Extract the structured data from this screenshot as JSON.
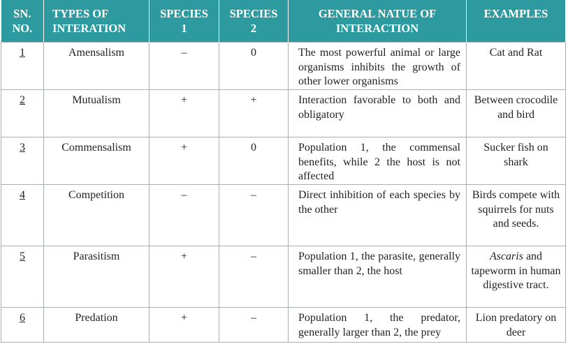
{
  "table": {
    "headers": [
      "SN.\nNO.",
      "TYPES OF\nINTERATION",
      "SPECIES\n1",
      "SPECIES\n2",
      "GENERAL NATUE OF\nINTERACTION",
      "EXAMPLES"
    ],
    "rows": [
      [
        "1",
        "Amensalism",
        "–",
        "0",
        "The most powerful animal or large organisms inhibits the growth of other lower organisms",
        "Cat and Rat"
      ],
      [
        "2",
        "Mutualism",
        "+",
        "+",
        "Interaction favorable to both and obligatory",
        "Between crocodile and bird"
      ],
      [
        "3",
        "Commensalism",
        "+",
        "0",
        "Population 1, the commensal benefits, while 2 the host is not affected",
        "Sucker fish on shark"
      ],
      [
        "4",
        "Competition",
        "–",
        "–",
        "Direct inhibition of each species by the other",
        "Birds compete with squirrels for nuts and seeds."
      ],
      [
        "5",
        "Parasitism",
        "+",
        "–",
        "Population 1, the parasite, generally smaller than 2, the host",
        [
          "Ascaris",
          " and tapeworm in human digestive tract."
        ]
      ],
      [
        "6",
        "Predation",
        "+",
        "–",
        "Population 1, the predator, generally larger than 2, the prey",
        "Lion predatory on deer"
      ]
    ]
  }
}
